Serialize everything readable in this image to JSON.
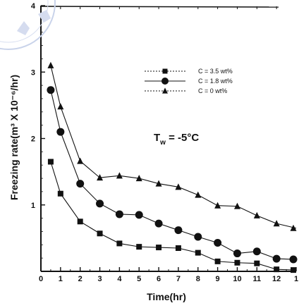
{
  "chart_data": {
    "type": "line",
    "title": "",
    "xlabel": "Time(hr)",
    "ylabel": "Freezing rate(m³ X 10⁻⁶/hr)",
    "xlim": [
      0,
      13
    ],
    "ylim": [
      0,
      4
    ],
    "x_ticks": [
      0,
      1,
      2,
      3,
      4,
      5,
      6,
      7,
      8,
      9,
      10,
      11,
      12,
      13
    ],
    "x_tick_labels": [
      "0",
      "1",
      "2",
      "3",
      "4",
      "5",
      "6",
      "7",
      "8",
      "9",
      "10",
      "11",
      "12",
      "1"
    ],
    "y_ticks": [
      1,
      2,
      3,
      4
    ],
    "y_tick_labels": [
      "1",
      "2",
      "3",
      "4"
    ],
    "grid": false,
    "legend_position": "top-right",
    "annotation": {
      "main": "T",
      "sub": "w",
      "rest": " = -5°C"
    },
    "series": [
      {
        "name": "C = 3.5 wt%",
        "marker": "square",
        "color": "#111111",
        "x": [
          0.5,
          1,
          2,
          3,
          4,
          5,
          6,
          7,
          8,
          9,
          10,
          11,
          12,
          13
        ],
        "y": [
          1.65,
          1.17,
          0.75,
          0.57,
          0.42,
          0.37,
          0.36,
          0.35,
          0.28,
          0.15,
          0.13,
          0.12,
          0.03,
          0.02
        ]
      },
      {
        "name": "C = 1.8 wt%",
        "marker": "circle",
        "color": "#111111",
        "x": [
          0.5,
          1,
          2,
          3,
          4,
          5,
          6,
          7,
          8,
          9,
          10,
          11,
          12,
          13
        ],
        "y": [
          2.73,
          2.1,
          1.32,
          1.02,
          0.86,
          0.85,
          0.72,
          0.62,
          0.52,
          0.43,
          0.27,
          0.3,
          0.19,
          0.18
        ]
      },
      {
        "name": "C = 0 wt%",
        "marker": "triangle",
        "color": "#111111",
        "x": [
          0.5,
          1,
          2,
          3,
          4,
          5,
          6,
          7,
          8,
          9,
          10,
          11,
          12,
          13
        ],
        "y": [
          3.1,
          2.48,
          1.66,
          1.41,
          1.44,
          1.4,
          1.32,
          1.27,
          1.15,
          0.99,
          0.98,
          0.84,
          0.72,
          0.65
        ]
      }
    ]
  }
}
